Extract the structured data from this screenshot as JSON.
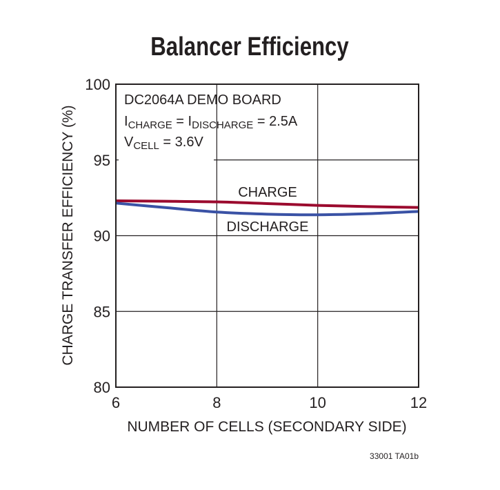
{
  "chart_data": {
    "type": "line",
    "title": "Balancer Efficiency",
    "xlabel": "NUMBER OF CELLS (SECONDARY SIDE)",
    "ylabel": "CHARGE TRANSFER EFFICIENCY (%)",
    "xlim": [
      6,
      12
    ],
    "ylim": [
      80,
      100
    ],
    "xticks": [
      "6",
      "8",
      "10",
      "12"
    ],
    "yticks": [
      "80",
      "85",
      "90",
      "95",
      "100"
    ],
    "grid": true,
    "x": [
      6,
      7,
      8,
      9,
      10,
      11,
      12
    ],
    "series": [
      {
        "name": "CHARGE",
        "color": "#9b0a2e",
        "values": [
          92.3,
          92.27,
          92.23,
          92.12,
          92.0,
          91.92,
          91.86
        ]
      },
      {
        "name": "DISCHARGE",
        "color": "#3a52a5",
        "values": [
          92.15,
          91.85,
          91.56,
          91.42,
          91.38,
          91.45,
          91.6
        ]
      }
    ],
    "annotation": {
      "line1": "DC2064A DEMO BOARD",
      "line2": {
        "i1": "I",
        "sub1": "CHARGE",
        "mid": " = I",
        "sub2": "DISCHARGE",
        "end": " = 2.5A"
      },
      "line3": {
        "v": "V",
        "sub": "CELL",
        "end": " = 3.6V"
      }
    },
    "footnote": "33001 TA01b"
  }
}
